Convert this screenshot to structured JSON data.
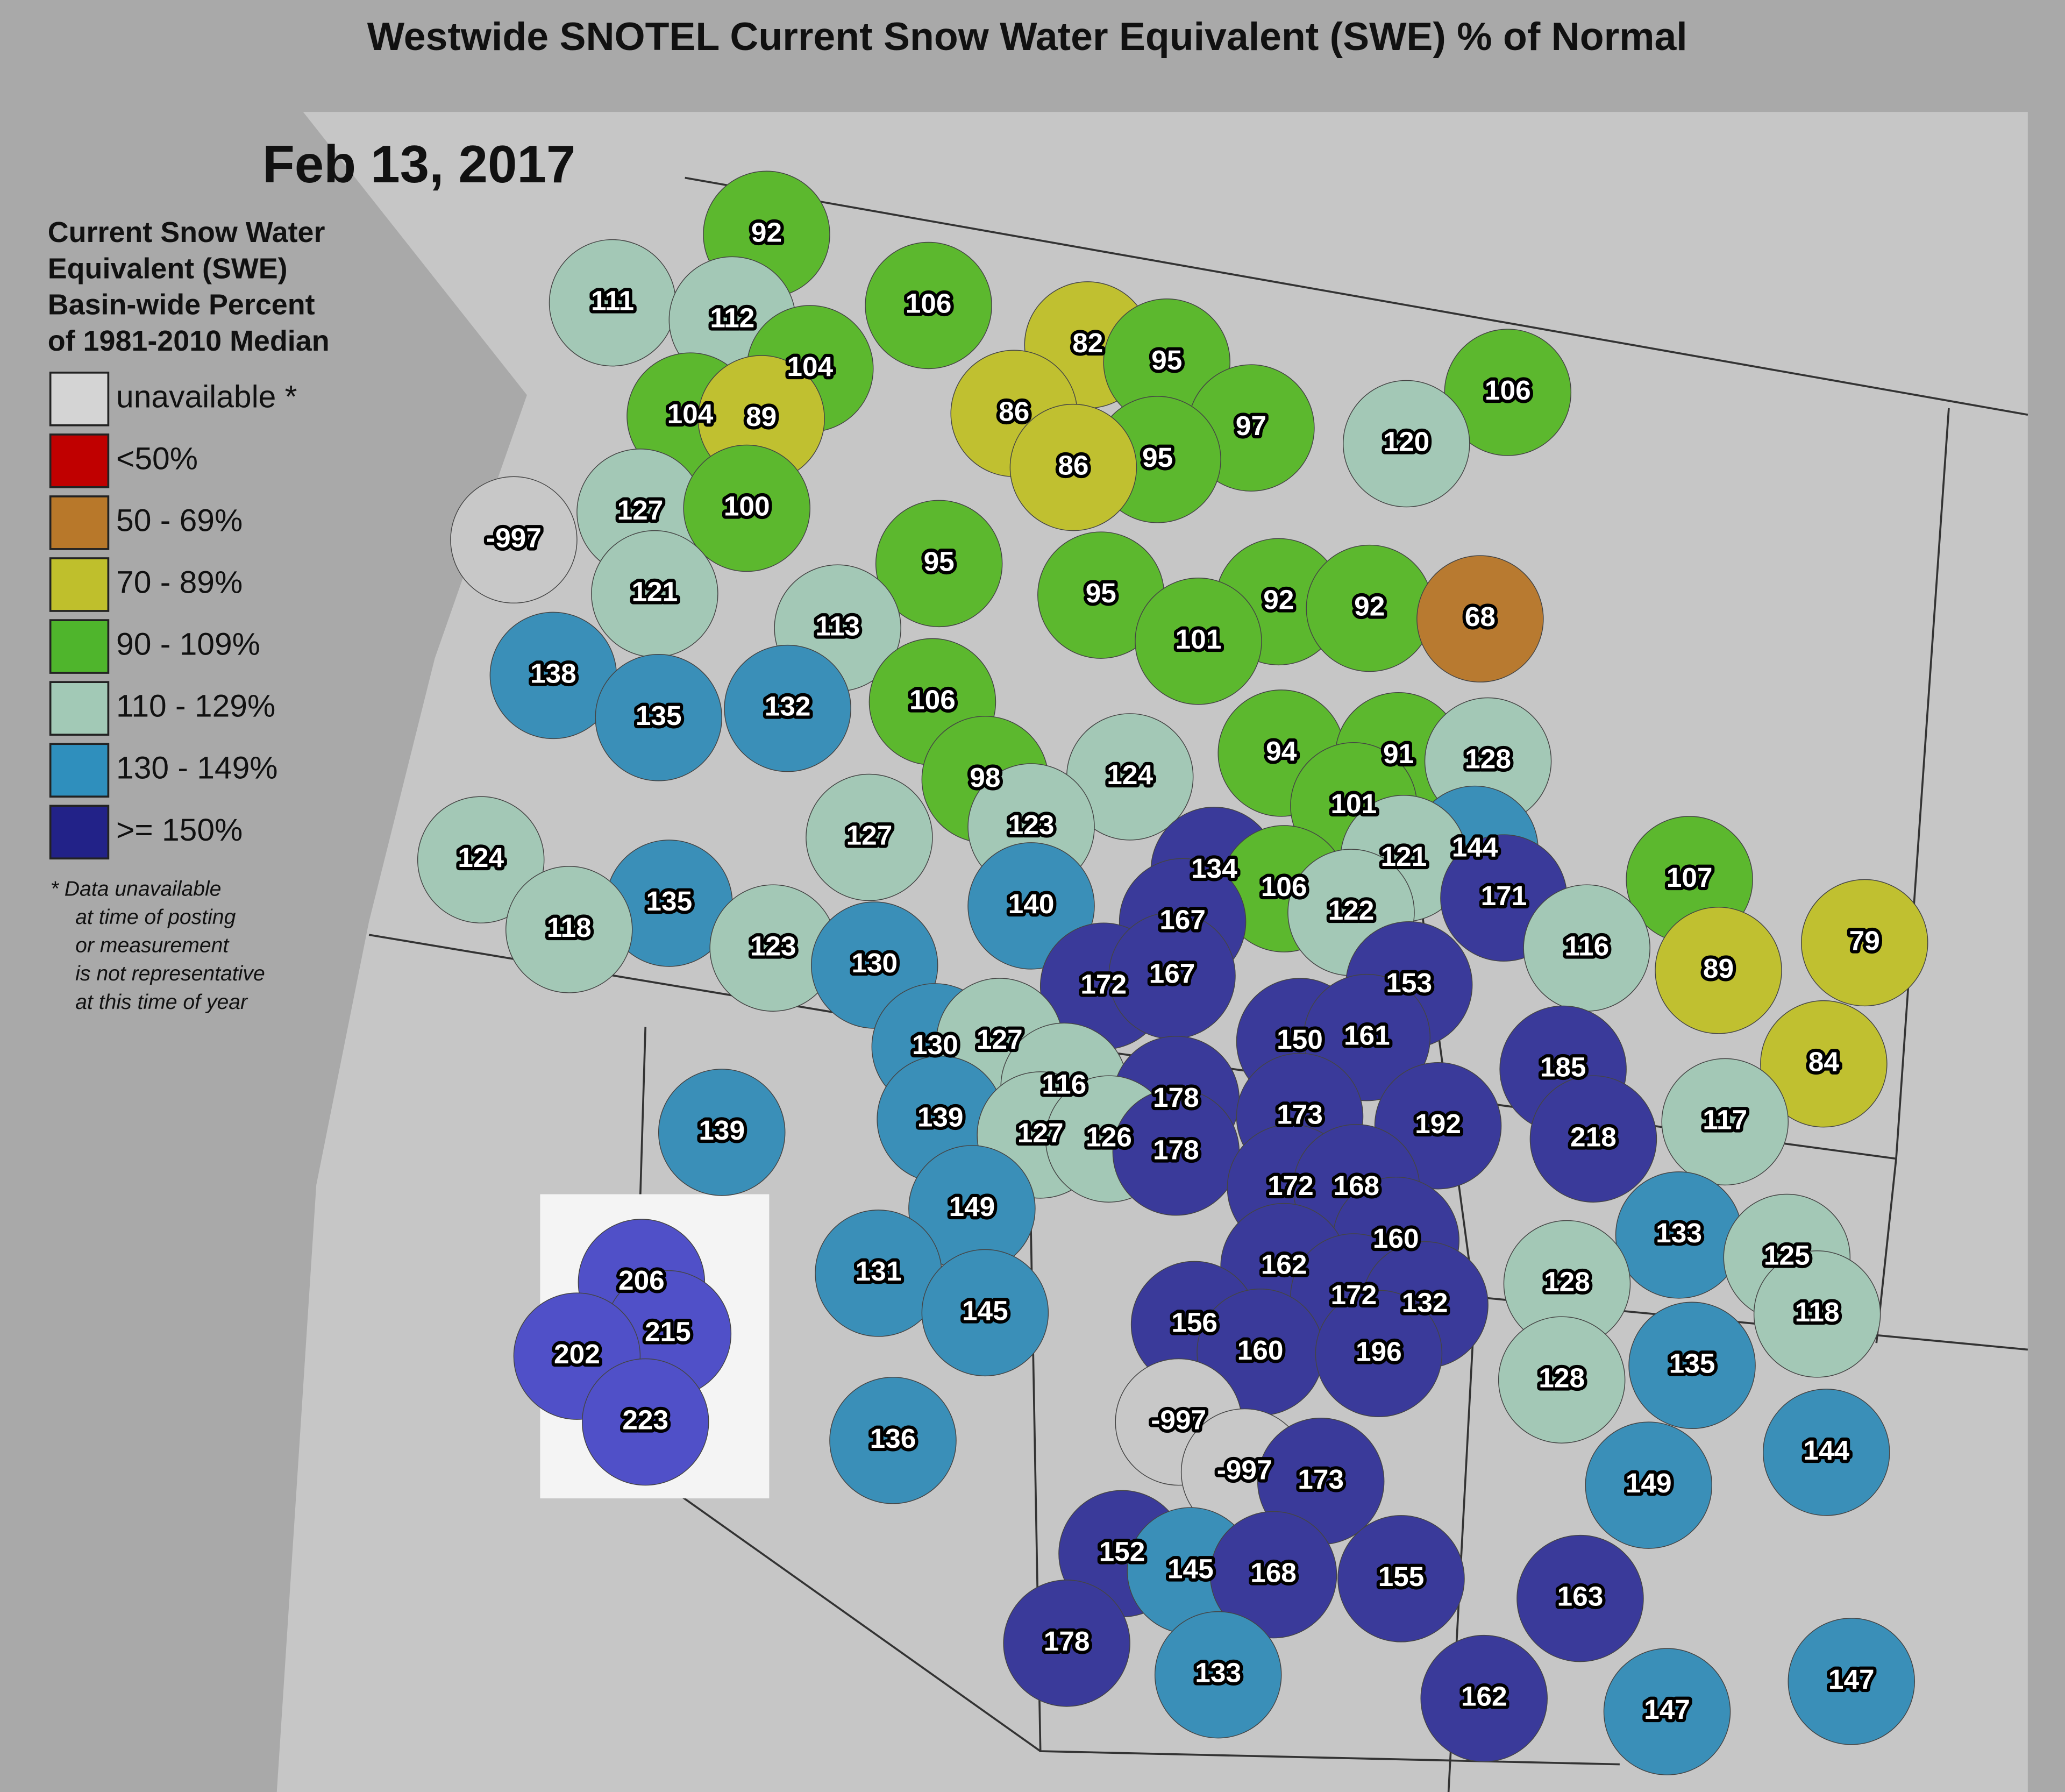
{
  "title": "Westwide SNOTEL Current Snow Water Equivalent (SWE) % of Normal",
  "date": "Feb 13, 2017",
  "legend": {
    "heading": [
      "Current Snow Water",
      "Equivalent (SWE)",
      "Basin-wide Percent",
      "of 1981-2010 Median"
    ],
    "items": [
      {
        "label": "unavailable *",
        "color": "#d4d4d4"
      },
      {
        "label": "<50%",
        "color": "#c00000"
      },
      {
        "label": "50 - 69%",
        "color": "#b8782a"
      },
      {
        "label": "70 - 89%",
        "color": "#bfbf2c"
      },
      {
        "label": "90 - 109%",
        "color": "#4fb52c"
      },
      {
        "label": "110 - 129%",
        "color": "#a2c9b6"
      },
      {
        "label": "130 - 149%",
        "color": "#2f8fbd"
      },
      {
        "label": ">= 150%",
        "color": "#222288"
      }
    ],
    "note": [
      "* Data unavailable",
      "at time of posting",
      "or measurement",
      "is not representative",
      "at this time of year"
    ]
  },
  "basins": [
    {
      "value": 92,
      "color": "#5cb82e"
    },
    {
      "value": 111,
      "color": "#a3c8b6"
    },
    {
      "value": 112,
      "color": "#a3c8b6"
    },
    {
      "value": 106,
      "color": "#5cb82e"
    },
    {
      "value": 104,
      "color": "#5cb82e"
    },
    {
      "value": 82,
      "color": "#c0c030"
    },
    {
      "value": 95,
      "color": "#5cb82e"
    },
    {
      "value": 104,
      "color": "#5cb82e"
    },
    {
      "value": 89,
      "color": "#c0c030"
    },
    {
      "value": 86,
      "color": "#c0c030"
    },
    {
      "value": 97,
      "color": "#5cb82e"
    },
    {
      "value": 106,
      "color": "#5cb82e"
    },
    {
      "value": 120,
      "color": "#a3c8b6"
    },
    {
      "value": 95,
      "color": "#5cb82e"
    },
    {
      "value": 86,
      "color": "#c0c030"
    },
    {
      "value": 127,
      "color": "#a3c8b6"
    },
    {
      "value": 100,
      "color": "#5cb82e"
    },
    {
      "value": -997,
      "color": "#c8c8c8"
    },
    {
      "value": 95,
      "color": "#5cb82e"
    },
    {
      "value": 95,
      "color": "#5cb82e"
    },
    {
      "value": 121,
      "color": "#a3c8b6"
    },
    {
      "value": 92,
      "color": "#5cb82e"
    },
    {
      "value": 92,
      "color": "#5cb82e"
    },
    {
      "value": 68,
      "color": "#b87a30"
    },
    {
      "value": 113,
      "color": "#a3c8b6"
    },
    {
      "value": 101,
      "color": "#5cb82e"
    },
    {
      "value": 138,
      "color": "#3a8fb8"
    },
    {
      "value": 135,
      "color": "#3a8fb8"
    },
    {
      "value": 132,
      "color": "#3a8fb8"
    },
    {
      "value": 106,
      "color": "#5cb82e"
    },
    {
      "value": 94,
      "color": "#5cb82e"
    },
    {
      "value": 91,
      "color": "#5cb82e"
    },
    {
      "value": 128,
      "color": "#a3c8b6"
    },
    {
      "value": 124,
      "color": "#a3c8b6"
    },
    {
      "value": 98,
      "color": "#5cb82e"
    },
    {
      "value": 123,
      "color": "#a3c8b6"
    },
    {
      "value": 101,
      "color": "#5cb82e"
    },
    {
      "value": 127,
      "color": "#a3c8b6"
    },
    {
      "value": 124,
      "color": "#a3c8b6"
    },
    {
      "value": 144,
      "color": "#3a8fb8"
    },
    {
      "value": 121,
      "color": "#a3c8b6"
    },
    {
      "value": 134,
      "color": "#3a3a9a"
    },
    {
      "value": 107,
      "color": "#5cb82e"
    },
    {
      "value": 171,
      "color": "#3a3a9a"
    },
    {
      "value": 106,
      "color": "#5cb82e"
    },
    {
      "value": 122,
      "color": "#a3c8b6"
    },
    {
      "value": 140,
      "color": "#3a8fb8"
    },
    {
      "value": 167,
      "color": "#3a3a9a"
    },
    {
      "value": 135,
      "color": "#3a8fb8"
    },
    {
      "value": 118,
      "color": "#a3c8b6"
    },
    {
      "value": 123,
      "color": "#a3c8b6"
    },
    {
      "value": 116,
      "color": "#a3c8b6"
    },
    {
      "value": 89,
      "color": "#c0c030"
    },
    {
      "value": 79,
      "color": "#c0c030"
    },
    {
      "value": 130,
      "color": "#3a8fb8"
    },
    {
      "value": 172,
      "color": "#3a3a9a"
    },
    {
      "value": 167,
      "color": "#3a3a9a"
    },
    {
      "value": 153,
      "color": "#3a3a9a"
    },
    {
      "value": 150,
      "color": "#3a3a9a"
    },
    {
      "value": 161,
      "color": "#3a3a9a"
    },
    {
      "value": 130,
      "color": "#3a8fb8"
    },
    {
      "value": 127,
      "color": "#a3c8b6"
    },
    {
      "value": 185,
      "color": "#3a3a9a"
    },
    {
      "value": 84,
      "color": "#c0c030"
    },
    {
      "value": 116,
      "color": "#a3c8b6"
    },
    {
      "value": 178,
      "color": "#3a3a9a"
    },
    {
      "value": 173,
      "color": "#3a3a9a"
    },
    {
      "value": 192,
      "color": "#3a3a9a"
    },
    {
      "value": 117,
      "color": "#a3c8b6"
    },
    {
      "value": 139,
      "color": "#3a8fb8"
    },
    {
      "value": 139,
      "color": "#3a8fb8"
    },
    {
      "value": 127,
      "color": "#a3c8b6"
    },
    {
      "value": 126,
      "color": "#a3c8b6"
    },
    {
      "value": 178,
      "color": "#3a3a9a"
    },
    {
      "value": 218,
      "color": "#3a3a9a"
    },
    {
      "value": 172,
      "color": "#3a3a9a"
    },
    {
      "value": 168,
      "color": "#3a3a9a"
    },
    {
      "value": 149,
      "color": "#3a8fb8"
    },
    {
      "value": 160,
      "color": "#3a3a9a"
    },
    {
      "value": 133,
      "color": "#3a8fb8"
    },
    {
      "value": 125,
      "color": "#a3c8b6"
    },
    {
      "value": 162,
      "color": "#3a3a9a"
    },
    {
      "value": 206,
      "color": "#5050c8"
    },
    {
      "value": 131,
      "color": "#3a8fb8"
    },
    {
      "value": 128,
      "color": "#a3c8b6"
    },
    {
      "value": 172,
      "color": "#3a3a9a"
    },
    {
      "value": 132,
      "color": "#3a3a9a"
    },
    {
      "value": 215,
      "color": "#5050c8"
    },
    {
      "value": 145,
      "color": "#3a8fb8"
    },
    {
      "value": 118,
      "color": "#a3c8b6"
    },
    {
      "value": 202,
      "color": "#5050c8"
    },
    {
      "value": 156,
      "color": "#3a3a9a"
    },
    {
      "value": 160,
      "color": "#3a3a9a"
    },
    {
      "value": 196,
      "color": "#3a3a9a"
    },
    {
      "value": 135,
      "color": "#3a8fb8"
    },
    {
      "value": 128,
      "color": "#a3c8b6"
    },
    {
      "value": 223,
      "color": "#5050c8"
    },
    {
      "value": -997,
      "color": "#c8c8c8"
    },
    {
      "value": 136,
      "color": "#3a8fb8"
    },
    {
      "value": 144,
      "color": "#3a8fb8"
    },
    {
      "value": -997,
      "color": "#c8c8c8"
    },
    {
      "value": 173,
      "color": "#3a3a9a"
    },
    {
      "value": 149,
      "color": "#3a8fb8"
    },
    {
      "value": 152,
      "color": "#3a3a9a"
    },
    {
      "value": 145,
      "color": "#3a8fb8"
    },
    {
      "value": 168,
      "color": "#3a3a9a"
    },
    {
      "value": 155,
      "color": "#3a3a9a"
    },
    {
      "value": 163,
      "color": "#3a3a9a"
    },
    {
      "value": 178,
      "color": "#3a3a9a"
    },
    {
      "value": 133,
      "color": "#3a8fb8"
    },
    {
      "value": 147,
      "color": "#3a8fb8"
    },
    {
      "value": 162,
      "color": "#3a3a9a"
    },
    {
      "value": 147,
      "color": "#3a8fb8"
    }
  ]
}
